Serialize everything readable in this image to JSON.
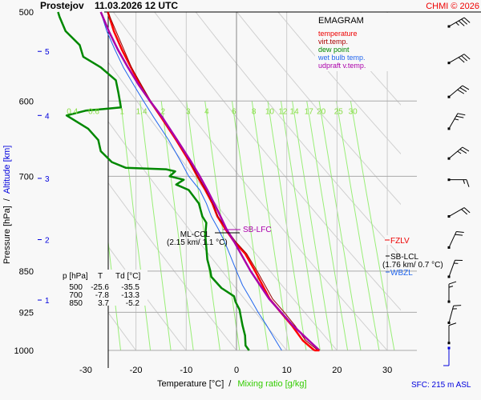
{
  "header": {
    "station": "Prostejov",
    "datetime": "11.03.2026 12 UTC",
    "credit": "CHMI © 2026"
  },
  "chart_data": {
    "type": "line",
    "title": "EMAGRAM",
    "xlabel": "Temperature [°C]",
    "xlabel_secondary": "Mixing ratio [g/kg]",
    "xlabel_separator": "/",
    "ylabel": "Pressure [hPa]",
    "ylabel_secondary": "Altitude [km]",
    "ylabel_separator": "/",
    "xlim": [
      -37,
      33
    ],
    "ylim_hpa": [
      1000,
      500
    ],
    "x_ticks": [
      -30,
      -20,
      -10,
      0,
      10,
      20,
      30
    ],
    "pressure_ticks": [
      500,
      600,
      700,
      850,
      925,
      1000
    ],
    "altitude_ticks": [
      {
        "km": 1,
        "hpa": 902
      },
      {
        "km": 2,
        "hpa": 797
      },
      {
        "km": 3,
        "hpa": 703
      },
      {
        "km": 4,
        "hpa": 618
      },
      {
        "km": 5,
        "hpa": 542
      }
    ],
    "mixing_ratio_labels": [
      "0.4",
      "0.6",
      "1",
      "1.4",
      "2",
      "3",
      "4",
      "6",
      "8",
      "10",
      "12",
      "14",
      "17",
      "20",
      "25",
      "30"
    ],
    "legend": [
      {
        "label": "temperature",
        "color": "#ff0000"
      },
      {
        "label": "virt.temp.",
        "color": "#aa0000"
      },
      {
        "label": "dew point",
        "color": "#008800"
      },
      {
        "label": "wet bulb temp.",
        "color": "#2266ee"
      },
      {
        "label": "udpraft v.temp.",
        "color": "#aa00aa"
      }
    ],
    "legend_position": "top-right",
    "series": [
      {
        "name": "temperature",
        "points": [
          [
            1000,
            15.5
          ],
          [
            980,
            13.2
          ],
          [
            950,
            11.0
          ],
          [
            925,
            8.8
          ],
          [
            900,
            6.6
          ],
          [
            850,
            3.7
          ],
          [
            820,
            1.7
          ],
          [
            800,
            -0.5
          ],
          [
            780,
            -2.2
          ],
          [
            760,
            -3.8
          ],
          [
            740,
            -4.8
          ],
          [
            720,
            -6.2
          ],
          [
            700,
            -7.8
          ],
          [
            680,
            -9.3
          ],
          [
            650,
            -12.0
          ],
          [
            620,
            -15.0
          ],
          [
            600,
            -17.2
          ],
          [
            580,
            -19.2
          ],
          [
            560,
            -21.0
          ],
          [
            540,
            -22.8
          ],
          [
            520,
            -24.4
          ],
          [
            500,
            -25.6
          ]
        ]
      },
      {
        "name": "virt.temp.",
        "points": [
          [
            1000,
            16.2
          ],
          [
            980,
            13.8
          ],
          [
            950,
            11.6
          ],
          [
            925,
            9.5
          ],
          [
            900,
            7.2
          ],
          [
            850,
            4.1
          ],
          [
            820,
            2.0
          ],
          [
            800,
            -0.2
          ],
          [
            780,
            -2.0
          ],
          [
            760,
            -3.7
          ],
          [
            740,
            -4.7
          ],
          [
            720,
            -6.1
          ],
          [
            700,
            -7.7
          ],
          [
            680,
            -9.2
          ],
          [
            650,
            -11.9
          ],
          [
            620,
            -14.9
          ],
          [
            600,
            -17.1
          ],
          [
            560,
            -20.9
          ],
          [
            500,
            -25.6
          ]
        ]
      },
      {
        "name": "dew point",
        "points": [
          [
            1000,
            2.5
          ],
          [
            990,
            1.8
          ],
          [
            970,
            1.7
          ],
          [
            950,
            1.2
          ],
          [
            930,
            0.8
          ],
          [
            920,
            0.6
          ],
          [
            905,
            -0.2
          ],
          [
            895,
            -0.5
          ],
          [
            880,
            -3.0
          ],
          [
            860,
            -5.0
          ],
          [
            850,
            -5.2
          ],
          [
            830,
            -5.8
          ],
          [
            810,
            -6.0
          ],
          [
            790,
            -6.2
          ],
          [
            770,
            -6.0
          ],
          [
            760,
            -6.8
          ],
          [
            740,
            -7.5
          ],
          [
            720,
            -9.5
          ],
          [
            712,
            -12.0
          ],
          [
            705,
            -10.5
          ],
          [
            700,
            -13.3
          ],
          [
            693,
            -12.2
          ],
          [
            690,
            -14.0
          ],
          [
            688,
            -22.0
          ],
          [
            680,
            -24.8
          ],
          [
            665,
            -27.0
          ],
          [
            650,
            -27.5
          ],
          [
            635,
            -29.5
          ],
          [
            618,
            -33.8
          ],
          [
            612,
            -30.0
          ],
          [
            608,
            -23.0
          ],
          [
            600,
            -23.2
          ],
          [
            590,
            -23.5
          ],
          [
            575,
            -24.0
          ],
          [
            560,
            -27.0
          ],
          [
            548,
            -30.5
          ],
          [
            535,
            -31.2
          ],
          [
            520,
            -34.0
          ],
          [
            505,
            -35.2
          ],
          [
            500,
            -35.5
          ]
        ]
      },
      {
        "name": "wet bulb temp.",
        "points": [
          [
            1000,
            9.0
          ],
          [
            975,
            7.5
          ],
          [
            950,
            6.0
          ],
          [
            925,
            4.3
          ],
          [
            900,
            2.8
          ],
          [
            875,
            1.2
          ],
          [
            850,
            0.0
          ],
          [
            820,
            -1.4
          ],
          [
            800,
            -2.4
          ],
          [
            780,
            -3.6
          ],
          [
            760,
            -5.0
          ],
          [
            740,
            -6.0
          ],
          [
            720,
            -7.3
          ],
          [
            700,
            -9.5
          ],
          [
            680,
            -11.0
          ],
          [
            650,
            -13.5
          ],
          [
            620,
            -16.5
          ],
          [
            600,
            -18.5
          ],
          [
            580,
            -20.5
          ],
          [
            560,
            -22.5
          ],
          [
            540,
            -24.2
          ],
          [
            520,
            -25.8
          ],
          [
            500,
            -27.0
          ]
        ]
      },
      {
        "name": "udpraft v.temp.",
        "points": [
          [
            1000,
            16.5
          ],
          [
            950,
            11.2
          ],
          [
            900,
            6.5
          ],
          [
            850,
            2.8
          ],
          [
            800,
            -0.5
          ],
          [
            780,
            -2.0
          ],
          [
            750,
            -3.8
          ],
          [
            720,
            -5.8
          ],
          [
            700,
            -7.3
          ],
          [
            680,
            -9.0
          ],
          [
            650,
            -11.8
          ],
          [
            620,
            -14.8
          ],
          [
            600,
            -17.2
          ],
          [
            580,
            -19.5
          ],
          [
            560,
            -21.6
          ],
          [
            540,
            -23.6
          ],
          [
            520,
            -25.4
          ],
          [
            500,
            -27.0
          ]
        ]
      }
    ],
    "annotations": [
      {
        "label": "SB-LFC",
        "hpa": 782,
        "color": "#aa00aa"
      },
      {
        "label": "ML-CCL",
        "detail": "(2.15 km/ 1.1 °C)",
        "hpa": 786,
        "color": "#000000"
      },
      {
        "label": "FZLV",
        "hpa": 795,
        "color": "#ff0000"
      },
      {
        "label": "SB-LCL",
        "detail": "(1.76 km/ 0.7 °C)",
        "hpa": 820,
        "color": "#000000"
      },
      {
        "label": "WBZL",
        "hpa": 850,
        "color": "#2266ee"
      }
    ],
    "wind_barbs": [
      {
        "hpa": 515,
        "direction_deg": 240,
        "speed_kt": 35
      },
      {
        "hpa": 555,
        "direction_deg": 240,
        "speed_kt": 30
      },
      {
        "hpa": 595,
        "direction_deg": 230,
        "speed_kt": 30
      },
      {
        "hpa": 635,
        "direction_deg": 210,
        "speed_kt": 25
      },
      {
        "hpa": 675,
        "direction_deg": 230,
        "speed_kt": 25
      },
      {
        "hpa": 705,
        "direction_deg": 270,
        "speed_kt": 15
      },
      {
        "hpa": 760,
        "direction_deg": 240,
        "speed_kt": 20
      },
      {
        "hpa": 810,
        "direction_deg": 205,
        "speed_kt": 20
      },
      {
        "hpa": 860,
        "direction_deg": 200,
        "speed_kt": 15
      },
      {
        "hpa": 905,
        "direction_deg": 180,
        "speed_kt": 15
      },
      {
        "hpa": 945,
        "direction_deg": 195,
        "speed_kt": 15
      },
      {
        "hpa": 985,
        "direction_deg": 180,
        "speed_kt": 10
      }
    ],
    "sfc_label": "SFC: 215 m ASL",
    "table": {
      "headers": [
        "p [hPa]",
        "T",
        "Td [°C]"
      ],
      "rows": [
        [
          "500",
          "-25.6",
          "-35.5"
        ],
        [
          "700",
          "-7.8",
          "-13.3"
        ],
        [
          "850",
          "3.7",
          "-5.2"
        ]
      ]
    }
  }
}
